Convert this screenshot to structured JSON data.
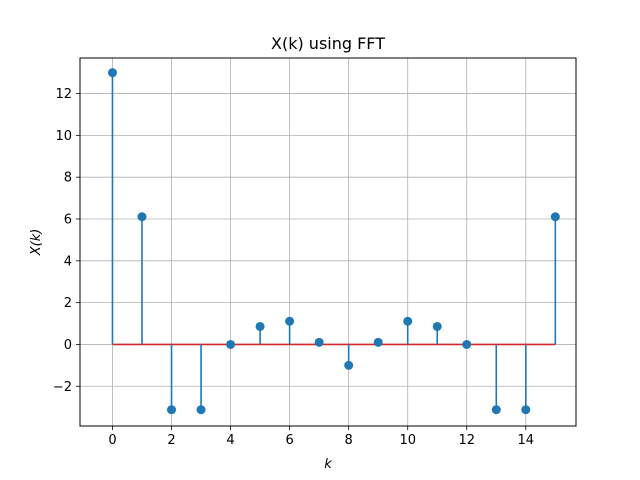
{
  "chart_data": {
    "type": "stem",
    "title": "X(k) using FFT",
    "xlabel": "k",
    "ylabel": "X(k)",
    "x": [
      0,
      1,
      2,
      3,
      4,
      5,
      6,
      7,
      8,
      9,
      10,
      11,
      12,
      13,
      14,
      15
    ],
    "values": [
      13,
      6.11,
      -3.12,
      -3.12,
      0,
      0.86,
      1.11,
      0.1,
      -1,
      0.1,
      1.11,
      0.86,
      0,
      -3.12,
      -3.12,
      6.11
    ],
    "xlim": [
      -1.1,
      15.7
    ],
    "ylim": [
      -3.9,
      13.7
    ],
    "xticks": [
      0,
      2,
      4,
      6,
      8,
      10,
      12,
      14
    ],
    "yticks": [
      -2,
      0,
      2,
      4,
      6,
      8,
      10,
      12
    ],
    "grid": true,
    "colors": {
      "stem": "#1f77b4",
      "baseline": "#d62728",
      "grid": "#b0b0b0"
    }
  }
}
